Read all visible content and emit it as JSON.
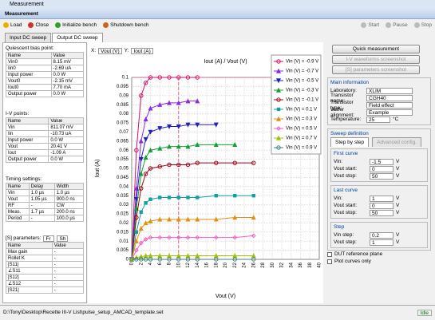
{
  "window_title": "Measurement",
  "panel_title": "Measurement",
  "toolbar": {
    "left": [
      "Load",
      "Close",
      "Initialize bench",
      "Shutdown bench"
    ],
    "right": [
      "Start",
      "Pause",
      "Stop"
    ]
  },
  "tabs": [
    "Input DC sweep",
    "Output DC sweep"
  ],
  "left": [
    {
      "title": "Quiescent bias point:",
      "header": [
        "Name",
        "Value"
      ],
      "rows": [
        [
          "Vin0",
          "8.15 mV"
        ],
        [
          "Iin0",
          "-2.69 uA"
        ],
        [
          "Input power",
          "0.0 W"
        ],
        [
          "Vout0",
          "-2.15 mV"
        ],
        [
          "Iout0",
          "7.70 mA"
        ],
        [
          "Output power",
          "0.0 W"
        ]
      ]
    },
    {
      "title": "I-V points:",
      "header": [
        "Name",
        "Value"
      ],
      "rows": [
        [
          "Vin",
          "811.07 mV"
        ],
        [
          "Iin",
          "-10.73 uA"
        ],
        [
          "Input power",
          "0.0 W"
        ],
        [
          "Vout",
          "20.41 V"
        ],
        [
          "Iout",
          "-1.09 A"
        ],
        [
          "Output power",
          "0.0 W"
        ]
      ]
    },
    {
      "title": "Timing settings:",
      "header": [
        "Name",
        "Delay",
        "Width"
      ],
      "rows": [
        [
          "Vin",
          "1.0 µs",
          "1.0 µs"
        ],
        [
          "Vout",
          "1.05 µs",
          "900.0 ns"
        ],
        [
          "RF",
          "-",
          "CW"
        ],
        [
          "Meas.",
          "1.7 µs",
          "200.0 ns"
        ],
        [
          "Period",
          "-",
          "100.0 µs"
        ]
      ]
    },
    {
      "title": "[S] parameters:",
      "selects": [
        "Fr",
        "Sh"
      ],
      "header": [
        "Name",
        "Value"
      ],
      "rows": [
        [
          "Max gain",
          "-"
        ],
        [
          "Rollet K",
          "-"
        ],
        [
          "|S11|",
          "-"
        ],
        [
          "∠S11",
          "-"
        ],
        [
          "|S12|",
          "-"
        ],
        [
          "∠S12",
          "-"
        ],
        [
          "|S21|",
          "-"
        ]
      ]
    }
  ],
  "selectors": {
    "x_label": "X:",
    "x_value": "Vout (V)",
    "y_label": "Y:",
    "y_value": "Iout (A)"
  },
  "chart_data": {
    "type": "line",
    "title": "Iout (A) / Vout (V)",
    "x_label": "Vout (V)",
    "y_label": "Iout (A)",
    "x": [
      0,
      1,
      2,
      3,
      4,
      6,
      8,
      10,
      12,
      14,
      18,
      22,
      26
    ],
    "xlim": [
      0,
      40
    ],
    "xticks": [
      0,
      2,
      4,
      6,
      8,
      10,
      12,
      14,
      16,
      18,
      20,
      22,
      24,
      26,
      28,
      30,
      32,
      34,
      36,
      38,
      40
    ],
    "ylim": [
      0,
      0.1
    ],
    "yticks": [
      0,
      0.005,
      0.01,
      0.015,
      0.02,
      0.025,
      0.03,
      0.035,
      0.04,
      0.045,
      0.05,
      0.055,
      0.06,
      0.065,
      0.07,
      0.075,
      0.08,
      0.085,
      0.09,
      0.095,
      0.1
    ],
    "grid": true,
    "legend": "top-right",
    "reference_lines": {
      "y": 0.1,
      "x": 10,
      "color": "#e0608a"
    },
    "series": [
      {
        "name": "Vin (V) = -0.9 V",
        "color": "#d0106a",
        "marker": "circle",
        "values": [
          0,
          0.06,
          0.09,
          0.097,
          0.1,
          0.1,
          0.1,
          0.1,
          0.1,
          0.1,
          null,
          null,
          null
        ]
      },
      {
        "name": "Vin (V) = -0.7 V",
        "color": "#8a2be2",
        "marker": "triangle",
        "values": [
          0,
          0.039,
          0.065,
          0.077,
          0.083,
          0.085,
          0.086,
          0.086,
          0.087,
          0.087,
          null,
          null,
          null
        ]
      },
      {
        "name": "Vin (V) = -0.5 V",
        "color": "#2020c0",
        "marker": "triangle-down",
        "values": [
          0,
          0.033,
          0.055,
          0.066,
          0.07,
          0.072,
          0.073,
          0.073,
          0.074,
          0.074,
          0.074,
          null,
          null
        ]
      },
      {
        "name": "Vin (V) = -0.3 V",
        "color": "#10a030",
        "marker": "triangle",
        "values": [
          0,
          0.028,
          0.047,
          0.056,
          0.06,
          0.061,
          0.062,
          0.062,
          0.062,
          0.063,
          0.063,
          0.063,
          null
        ]
      },
      {
        "name": "Vin (V) = -0.1 V",
        "color": "#a00010",
        "marker": "circle",
        "values": [
          0,
          0.023,
          0.039,
          0.047,
          0.05,
          0.051,
          0.052,
          0.052,
          0.052,
          0.053,
          0.053,
          0.053,
          0.053
        ]
      },
      {
        "name": "Vin (V) = 0.1 V",
        "color": "#10a0a0",
        "marker": "square",
        "values": [
          0,
          0.015,
          0.026,
          0.031,
          0.033,
          0.034,
          0.034,
          0.034,
          0.034,
          0.034,
          0.035,
          0.035,
          0.035
        ]
      },
      {
        "name": "Vin (V) = 0.3 V",
        "color": "#e09010",
        "marker": "triangle",
        "values": [
          0,
          0.01,
          0.017,
          0.02,
          0.021,
          0.022,
          0.022,
          0.022,
          0.022,
          0.022,
          0.022,
          0.023,
          0.023
        ]
      },
      {
        "name": "Vin (V) = 0.5 V",
        "color": "#f060c0",
        "marker": "diamond",
        "values": [
          0,
          0.005,
          0.009,
          0.011,
          0.012,
          0.012,
          0.012,
          0.012,
          0.012,
          0.012,
          0.012,
          0.012,
          0.013
        ]
      },
      {
        "name": "Vin (V) = 0.7 V",
        "color": "#a0c000",
        "marker": "triangle",
        "values": [
          0,
          0.001,
          0.0015,
          0.002,
          0.002,
          0.002,
          0.002,
          0.002,
          0.002,
          0.002,
          0.002,
          0.002,
          0.002
        ]
      },
      {
        "name": "Vin (V) = 0.9 V",
        "color": "#408080",
        "marker": "circle",
        "values": [
          0,
          0,
          0,
          0,
          0,
          0,
          0,
          0,
          0,
          0,
          0,
          0,
          0
        ]
      }
    ]
  },
  "right": {
    "buttons": [
      "Quick measurement",
      "I-V waveforms screenshot",
      "[S] parameters screenshot"
    ],
    "main_title": "Main information",
    "main": [
      [
        "Laboratory:",
        "XLIM"
      ],
      [
        "Transistor name:",
        "CGH40"
      ],
      [
        "Transistor type:",
        "Field effect"
      ],
      [
        "Wafer alignment:",
        "Example"
      ],
      [
        "Temperature:",
        "25",
        "°C"
      ]
    ],
    "sweep_title": "Sweep definition",
    "sweep_tabs": [
      "Step by step",
      "Advanced config."
    ],
    "groups": [
      {
        "title": "First curve",
        "fields": [
          [
            "Vin:",
            "-1.5",
            "V"
          ],
          [
            "Vout start:",
            "0",
            "V"
          ],
          [
            "Vout stop:",
            "50",
            "V"
          ]
        ]
      },
      {
        "title": "Last curve",
        "fields": [
          [
            "Vin:",
            "1",
            "V"
          ],
          [
            "Vout start:",
            "0",
            "V"
          ],
          [
            "Vout stop:",
            "50",
            "V"
          ]
        ]
      },
      {
        "title": "Step",
        "fields": [
          [
            "Vin step:",
            "0.2",
            "V"
          ],
          [
            "Vout step:",
            "1",
            "V"
          ]
        ]
      }
    ],
    "checks": [
      "DUT reference plane",
      "Plot curves only"
    ]
  },
  "status": {
    "path": "D:\\Tony\\Desktop\\Recette III-V List\\pulse_setup_AMCAD_template.set",
    "state": "Idle"
  }
}
